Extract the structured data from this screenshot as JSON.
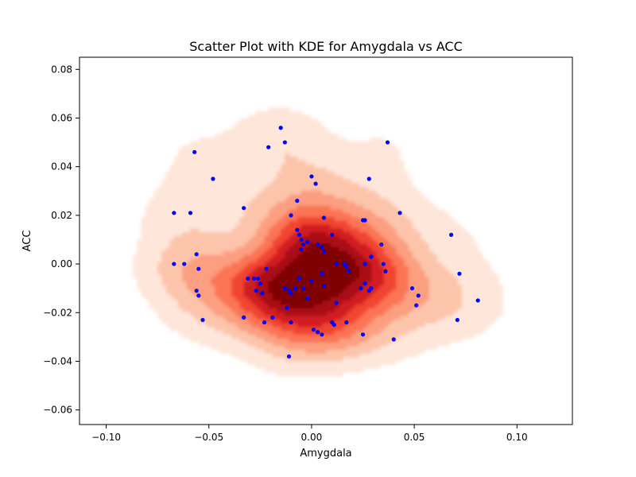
{
  "chart_data": {
    "type": "scatter",
    "title": "Scatter Plot with KDE for Amygdala vs ACC",
    "xlabel": "Amygdala",
    "ylabel": "ACC",
    "xlim": [
      -0.113,
      0.127
    ],
    "ylim": [
      -0.066,
      0.085
    ],
    "xticks": [
      -0.1,
      -0.05,
      0.0,
      0.05,
      0.1
    ],
    "xtick_labels": [
      "−0.10",
      "−0.05",
      "0.00",
      "0.05",
      "0.10"
    ],
    "yticks": [
      -0.06,
      -0.04,
      -0.02,
      0.0,
      0.02,
      0.04,
      0.06,
      0.08
    ],
    "ytick_labels": [
      "−0.06",
      "−0.04",
      "−0.02",
      "0.00",
      "0.02",
      "0.04",
      "0.06",
      "0.08"
    ],
    "grid": false,
    "legend": "none",
    "point_color": "#0000ff",
    "kde_colors": [
      "#fee6da",
      "#fcc5ab",
      "#fc9e80",
      "#fb7555",
      "#f14432",
      "#d11e20",
      "#a90f15",
      "#7f0000"
    ],
    "points": [
      {
        "x": -0.015,
        "y": 0.056
      },
      {
        "x": -0.013,
        "y": 0.05
      },
      {
        "x": -0.021,
        "y": 0.048
      },
      {
        "x": 0.037,
        "y": 0.05
      },
      {
        "x": -0.057,
        "y": 0.046
      },
      {
        "x": -0.048,
        "y": 0.035
      },
      {
        "x": 0.028,
        "y": 0.035
      },
      {
        "x": 0.0,
        "y": 0.036
      },
      {
        "x": 0.002,
        "y": 0.033
      },
      {
        "x": -0.007,
        "y": 0.026
      },
      {
        "x": -0.033,
        "y": 0.023
      },
      {
        "x": -0.067,
        "y": 0.021
      },
      {
        "x": -0.059,
        "y": 0.021
      },
      {
        "x": 0.043,
        "y": 0.021
      },
      {
        "x": -0.01,
        "y": 0.02
      },
      {
        "x": 0.006,
        "y": 0.019
      },
      {
        "x": 0.025,
        "y": 0.018
      },
      {
        "x": 0.026,
        "y": 0.018
      },
      {
        "x": 0.068,
        "y": 0.012
      },
      {
        "x": 0.01,
        "y": 0.012
      },
      {
        "x": -0.007,
        "y": 0.014
      },
      {
        "x": -0.006,
        "y": 0.012
      },
      {
        "x": -0.005,
        "y": 0.01
      },
      {
        "x": -0.004,
        "y": 0.008
      },
      {
        "x": -0.002,
        "y": 0.009
      },
      {
        "x": 0.003,
        "y": 0.008
      },
      {
        "x": 0.005,
        "y": 0.007
      },
      {
        "x": 0.034,
        "y": 0.008
      },
      {
        "x": -0.056,
        "y": 0.004
      },
      {
        "x": -0.067,
        "y": 0.0
      },
      {
        "x": -0.062,
        "y": 0.0
      },
      {
        "x": 0.029,
        "y": 0.003
      },
      {
        "x": 0.006,
        "y": 0.005
      },
      {
        "x": -0.055,
        "y": -0.002
      },
      {
        "x": -0.022,
        "y": -0.002
      },
      {
        "x": -0.005,
        "y": 0.006
      },
      {
        "x": 0.012,
        "y": 0.0
      },
      {
        "x": 0.016,
        "y": 0.0
      },
      {
        "x": 0.017,
        "y": -0.001
      },
      {
        "x": 0.018,
        "y": -0.003
      },
      {
        "x": 0.026,
        "y": 0.0
      },
      {
        "x": 0.035,
        "y": 0.0
      },
      {
        "x": 0.036,
        "y": -0.003
      },
      {
        "x": 0.005,
        "y": -0.004
      },
      {
        "x": -0.031,
        "y": -0.006
      },
      {
        "x": -0.028,
        "y": -0.006
      },
      {
        "x": -0.026,
        "y": -0.006
      },
      {
        "x": -0.025,
        "y": -0.008
      },
      {
        "x": -0.027,
        "y": -0.011
      },
      {
        "x": -0.024,
        "y": -0.012
      },
      {
        "x": -0.006,
        "y": -0.006
      },
      {
        "x": 0.0,
        "y": -0.007
      },
      {
        "x": 0.006,
        "y": -0.009
      },
      {
        "x": -0.013,
        "y": -0.01
      },
      {
        "x": -0.011,
        "y": -0.011
      },
      {
        "x": -0.01,
        "y": -0.012
      },
      {
        "x": -0.004,
        "y": -0.01
      },
      {
        "x": -0.002,
        "y": -0.014
      },
      {
        "x": -0.008,
        "y": -0.01
      },
      {
        "x": 0.024,
        "y": -0.01
      },
      {
        "x": 0.026,
        "y": -0.008
      },
      {
        "x": 0.028,
        "y": -0.011
      },
      {
        "x": 0.029,
        "y": -0.01
      },
      {
        "x": 0.049,
        "y": -0.01
      },
      {
        "x": 0.052,
        "y": -0.013
      },
      {
        "x": 0.051,
        "y": -0.017
      },
      {
        "x": 0.072,
        "y": -0.004
      },
      {
        "x": 0.081,
        "y": -0.015
      },
      {
        "x": 0.071,
        "y": -0.023
      },
      {
        "x": -0.056,
        "y": -0.011
      },
      {
        "x": -0.055,
        "y": -0.013
      },
      {
        "x": -0.053,
        "y": -0.023
      },
      {
        "x": 0.012,
        "y": -0.016
      },
      {
        "x": -0.012,
        "y": -0.018
      },
      {
        "x": -0.033,
        "y": -0.022
      },
      {
        "x": -0.019,
        "y": -0.022
      },
      {
        "x": -0.023,
        "y": -0.024
      },
      {
        "x": -0.01,
        "y": -0.024
      },
      {
        "x": 0.01,
        "y": -0.024
      },
      {
        "x": 0.011,
        "y": -0.025
      },
      {
        "x": 0.017,
        "y": -0.024
      },
      {
        "x": 0.001,
        "y": -0.027
      },
      {
        "x": 0.003,
        "y": -0.028
      },
      {
        "x": 0.005,
        "y": -0.029
      },
      {
        "x": 0.025,
        "y": -0.029
      },
      {
        "x": 0.04,
        "y": -0.031
      },
      {
        "x": -0.011,
        "y": -0.038
      }
    ]
  }
}
